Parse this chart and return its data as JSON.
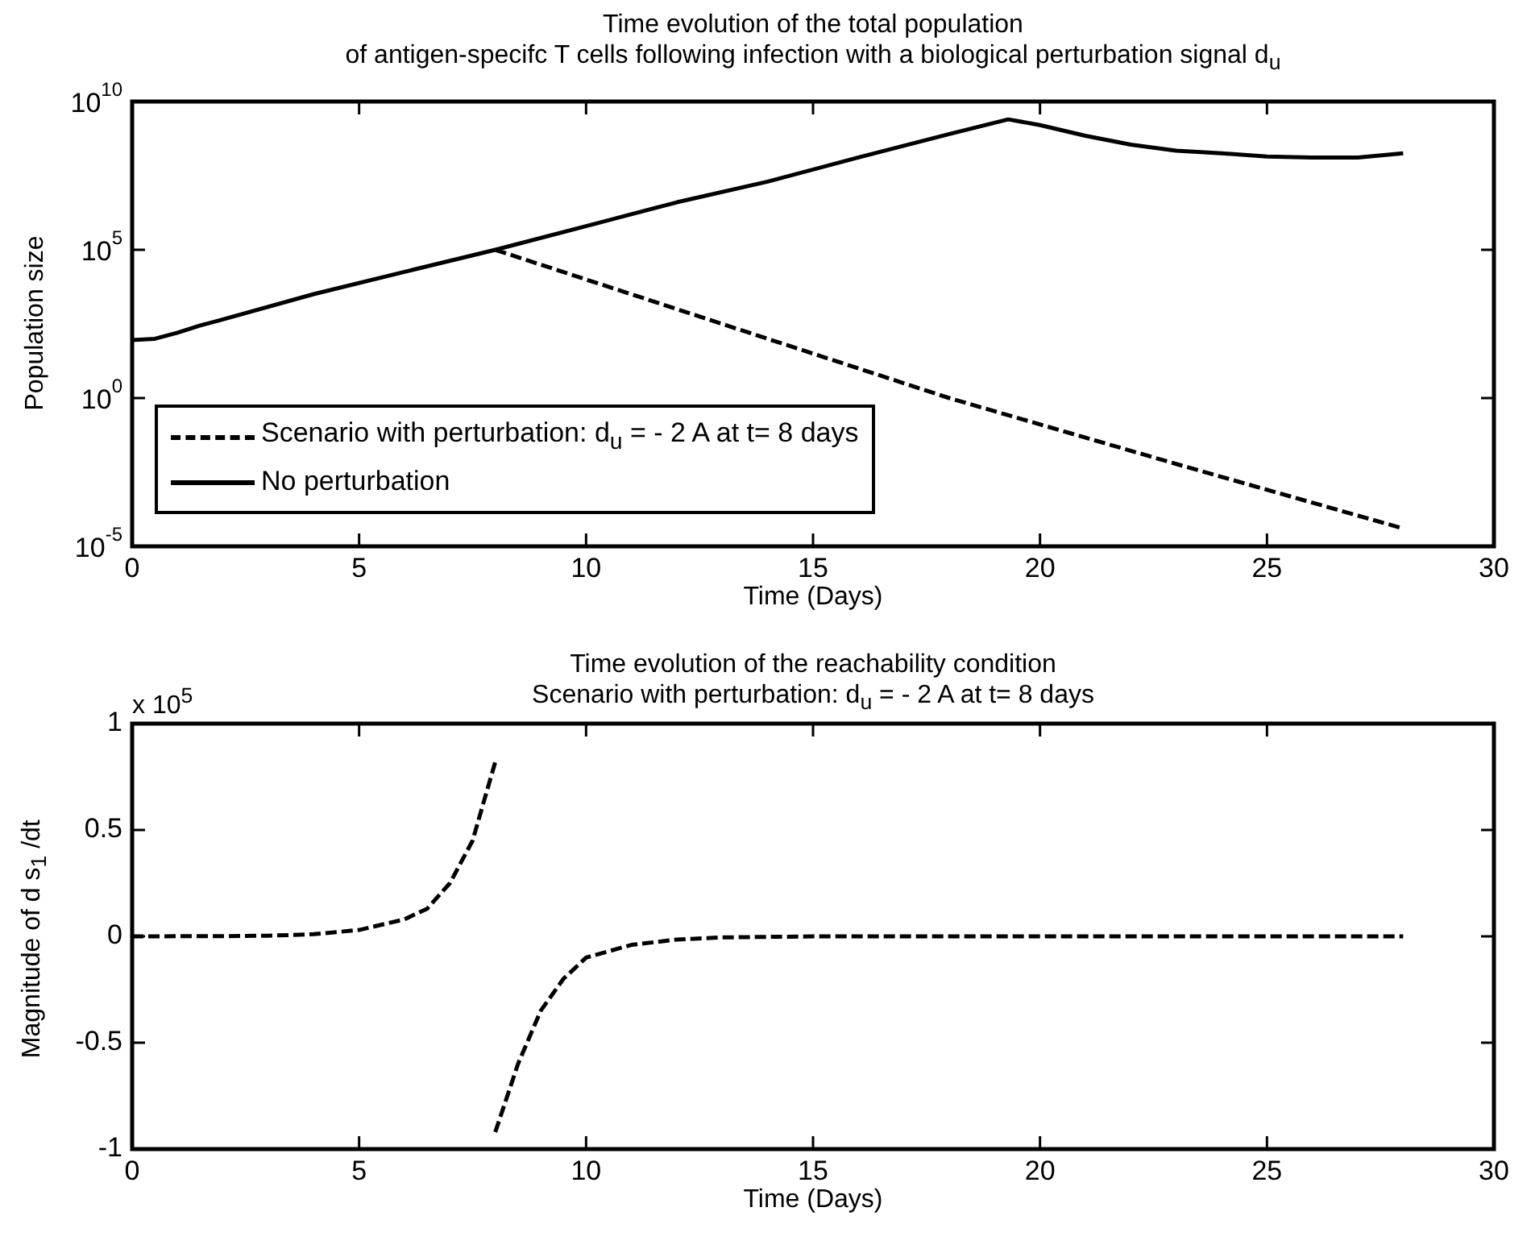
{
  "chart_data": [
    {
      "type": "line",
      "title": "Time evolution of the total population\nof antigen-specifc T  cells following infection with a biological perturbation signal d$_{u}$",
      "xlabel": "Time (Days)",
      "ylabel": "Population size",
      "log": "y",
      "xlim": [
        0,
        30
      ],
      "xticks": [
        0,
        5,
        10,
        15,
        20,
        25,
        30
      ],
      "ylim": [
        1e-05,
        10000000000
      ],
      "yticks": [
        {
          "value": 1e-05,
          "label": "10$^{-5}$"
        },
        {
          "value": 1,
          "label": "10$^{0}$"
        },
        {
          "value": 100000,
          "label": "10$^{5}$"
        },
        {
          "value": 10000000000,
          "label": "10$^{10}$"
        }
      ],
      "grid": false,
      "legend": "bottom left",
      "marker": "none",
      "series": [
        {
          "name": "Scenario with  perturbation: d$_{u}$ = - 2 A at t= 8 days",
          "color": "#000000",
          "line_style": "dashed",
          "x": [
            8,
            13,
            18,
            23,
            28
          ],
          "values": [
            100000,
            316,
            1,
            0.006,
            4e-05
          ]
        },
        {
          "name": "No perturbation",
          "color": "#000000",
          "line_style": "solid",
          "x": [
            0,
            0.5,
            1,
            1.5,
            2,
            4,
            6,
            8,
            10,
            12,
            14,
            16,
            18,
            19.3,
            20,
            21,
            22,
            23,
            24,
            25,
            26,
            27,
            28
          ],
          "values": [
            90,
            100,
            160,
            280,
            450,
            3200,
            18000,
            100000,
            630000,
            4000000,
            20000000,
            130000000,
            800000000,
            2500000000,
            1600000000,
            700000000,
            350000000,
            220000000,
            180000000,
            140000000,
            130000000,
            130000000,
            180000000
          ]
        }
      ]
    },
    {
      "type": "line",
      "title": "Time evolution of the reachability condition",
      "subtitle": "Scenario with  perturbation: d$_{u}$ = - 2 A at t= 8 days",
      "xlabel": "Time (Days)",
      "ylabel": "Magnitude of d s$_{1}$ /dt",
      "annotations": [
        "x 10$^{5}$"
      ],
      "xlim": [
        0,
        30
      ],
      "xticks": [
        0,
        5,
        10,
        15,
        20,
        25,
        30
      ],
      "ylim": [
        -1,
        1
      ],
      "yticks": [
        -1,
        -0.5,
        0,
        0.5,
        1
      ],
      "grid": false,
      "legend": false,
      "marker": "none",
      "series": [
        {
          "color": "#000000",
          "line_style": "dashed",
          "x": [
            0,
            2,
            3,
            4,
            5,
            6,
            6.5,
            7,
            7.5,
            8
          ],
          "values": [
            0,
            0.001,
            0.003,
            0.01,
            0.03,
            0.08,
            0.13,
            0.25,
            0.45,
            0.82
          ]
        },
        {
          "color": "#000000",
          "line_style": "dashed",
          "x": [
            8,
            8.5,
            9,
            9.5,
            10,
            11,
            12,
            13,
            15,
            28
          ],
          "values": [
            -0.92,
            -0.6,
            -0.35,
            -0.2,
            -0.1,
            -0.04,
            -0.015,
            -0.005,
            0,
            0
          ]
        }
      ]
    }
  ]
}
